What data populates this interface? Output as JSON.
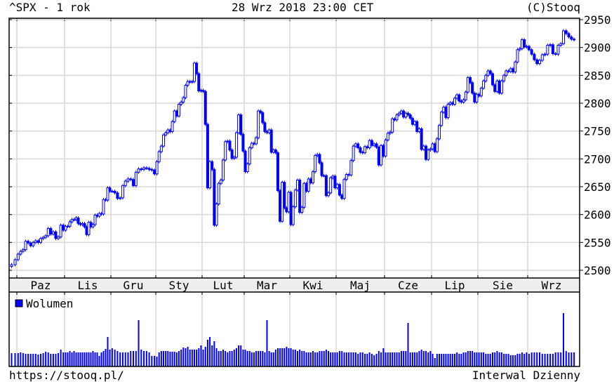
{
  "header": {
    "title": "^SPX - 1 rok",
    "datetime": "28 Wrz 2018 23:00 CET",
    "copyright": "(C)Stooq"
  },
  "footer": {
    "url": "https://stooq.pl/",
    "interval": "Interwal Dzienny"
  },
  "colors": {
    "series": "#0000ff",
    "grid": "#d8d8d8",
    "axis_band": "#eeeeee"
  },
  "chart_data": {
    "type": "candlestick",
    "title": "^SPX - 1 rok",
    "ylim": [
      2495,
      2955
    ],
    "yticks": [
      2500,
      2550,
      2600,
      2650,
      2700,
      2750,
      2800,
      2850,
      2900,
      2950
    ],
    "grid": true,
    "volume_legend": "Wolumen",
    "volume_legend_placement": "top-left",
    "start": {
      "closes": [
        2510,
        2519
      ],
      "volumes": [
        19,
        19
      ]
    },
    "months": [
      {
        "label": "Paz",
        "closes": [
          2529,
          2534,
          2537,
          2552,
          2549,
          2544,
          2550,
          2553,
          2550,
          2557,
          2559,
          2562,
          2575,
          2565,
          2569,
          2557,
          2560,
          2581,
          2572
        ],
        "volumes": [
          19,
          20,
          19,
          18,
          18,
          18,
          18,
          18,
          17,
          18,
          19,
          21,
          20,
          18,
          18,
          18,
          19,
          24,
          20
        ]
      },
      {
        "label": "Lis",
        "closes": [
          2579,
          2579,
          2587,
          2591,
          2591,
          2594,
          2584,
          2582,
          2584,
          2578,
          2564,
          2586,
          2578,
          2582,
          2599,
          2597,
          2602,
          2601,
          2627,
          2626,
          2648,
          2642
        ],
        "volumes": [
          20,
          20,
          22,
          20,
          22,
          20,
          20,
          20,
          20,
          20,
          20,
          20,
          20,
          22,
          20,
          20,
          15,
          20,
          22,
          25,
          42,
          24
        ]
      },
      {
        "label": "Gru",
        "closes": [
          2642,
          2639,
          2629,
          2630,
          2652,
          2660,
          2664,
          2663,
          2652,
          2676,
          2682,
          2681,
          2684,
          2683,
          2681,
          2680,
          2673
        ],
        "volumes": [
          26,
          24,
          22,
          20,
          20,
          20,
          20,
          22,
          22,
          22,
          66,
          24,
          22,
          22,
          20,
          15,
          15
        ]
      },
      {
        "label": "Sty",
        "closes": [
          2695,
          2713,
          2723,
          2743,
          2747,
          2752,
          2749,
          2767,
          2786,
          2777,
          2798,
          2802,
          2810,
          2832,
          2839,
          2838,
          2839,
          2872,
          2853,
          2822,
          2823
        ],
        "volumes": [
          14,
          20,
          22,
          22,
          22,
          22,
          21,
          21,
          21,
          20,
          22,
          24,
          27,
          26,
          28,
          24,
          24,
          24,
          24,
          26,
          30
        ]
      },
      {
        "label": "Lut",
        "closes": [
          2821,
          2762,
          2648,
          2695,
          2681,
          2581,
          2619,
          2656,
          2662,
          2698,
          2731,
          2732,
          2716,
          2701,
          2703,
          2747,
          2779,
          2744,
          2714
        ],
        "volumes": [
          24,
          28,
          38,
          42,
          30,
          36,
          26,
          22,
          22,
          24,
          22,
          20,
          22,
          22,
          24,
          26,
          30,
          30,
          24
        ]
      },
      {
        "label": "Mar",
        "closes": [
          2677,
          2691,
          2720,
          2728,
          2727,
          2738,
          2786,
          2783,
          2765,
          2749,
          2747,
          2752,
          2712,
          2716,
          2711,
          2643,
          2588,
          2658,
          2612,
          2605,
          2640
        ],
        "volumes": [
          24,
          22,
          22,
          20,
          20,
          22,
          22,
          22,
          22,
          20,
          66,
          22,
          20,
          20,
          24,
          26,
          26,
          26,
          26,
          28,
          26
        ]
      },
      {
        "label": "Kwi",
        "closes": [
          2582,
          2614,
          2644,
          2662,
          2604,
          2613,
          2656,
          2642,
          2664,
          2657,
          2677,
          2706,
          2708,
          2693,
          2670,
          2670,
          2634,
          2639,
          2666,
          2669,
          2648
        ],
        "volumes": [
          26,
          24,
          24,
          22,
          24,
          22,
          22,
          20,
          20,
          20,
          22,
          20,
          20,
          22,
          22,
          22,
          24,
          22,
          20,
          20,
          20
        ]
      },
      {
        "label": "Maj",
        "closes": [
          2654,
          2635,
          2629,
          2663,
          2672,
          2671,
          2697,
          2723,
          2727,
          2720,
          2712,
          2711,
          2722,
          2720,
          2733,
          2724,
          2727,
          2721,
          2689,
          2724,
          2705
        ],
        "volumes": [
          20,
          22,
          22,
          20,
          20,
          20,
          20,
          20,
          20,
          18,
          20,
          20,
          18,
          18,
          20,
          18,
          16,
          18,
          22,
          20,
          26
        ]
      },
      {
        "label": "Cze",
        "closes": [
          2734,
          2746,
          2748,
          2772,
          2770,
          2779,
          2782,
          2786,
          2775,
          2782,
          2779,
          2773,
          2762,
          2767,
          2749,
          2754,
          2717,
          2723,
          2699,
          2716,
          2718
        ],
        "volumes": [
          20,
          20,
          20,
          20,
          20,
          20,
          20,
          22,
          22,
          22,
          62,
          20,
          20,
          20,
          20,
          22,
          24,
          22,
          22,
          20,
          22
        ]
      },
      {
        "label": "Lip",
        "closes": [
          2727,
          2713,
          2736,
          2760,
          2784,
          2793,
          2774,
          2798,
          2801,
          2798,
          2809,
          2815,
          2804,
          2802,
          2806,
          2820,
          2846,
          2837,
          2818,
          2802,
          2816
        ],
        "volumes": [
          18,
          12,
          18,
          18,
          18,
          18,
          18,
          18,
          18,
          18,
          18,
          20,
          18,
          18,
          20,
          20,
          22,
          22,
          22,
          20,
          20
        ]
      },
      {
        "label": "Sie",
        "closes": [
          2813,
          2827,
          2840,
          2850,
          2858,
          2853,
          2833,
          2821,
          2840,
          2818,
          2840,
          2850,
          2858,
          2857,
          2862,
          2856,
          2874,
          2896,
          2898,
          2914,
          2901,
          2902
        ],
        "volumes": [
          20,
          20,
          20,
          18,
          18,
          18,
          20,
          20,
          22,
          20,
          20,
          18,
          18,
          18,
          16,
          16,
          16,
          18,
          18,
          20,
          18,
          20
        ]
      },
      {
        "label": "Wrz",
        "closes": [
          2896,
          2888,
          2878,
          2871,
          2877,
          2887,
          2888,
          2904,
          2905,
          2889,
          2888,
          2904,
          2907,
          2930,
          2925,
          2919,
          2915,
          2914
        ],
        "volumes": [
          18,
          20,
          20,
          20,
          20,
          18,
          18,
          18,
          18,
          18,
          20,
          20,
          20,
          76,
          22,
          20,
          20,
          20
        ]
      }
    ]
  }
}
